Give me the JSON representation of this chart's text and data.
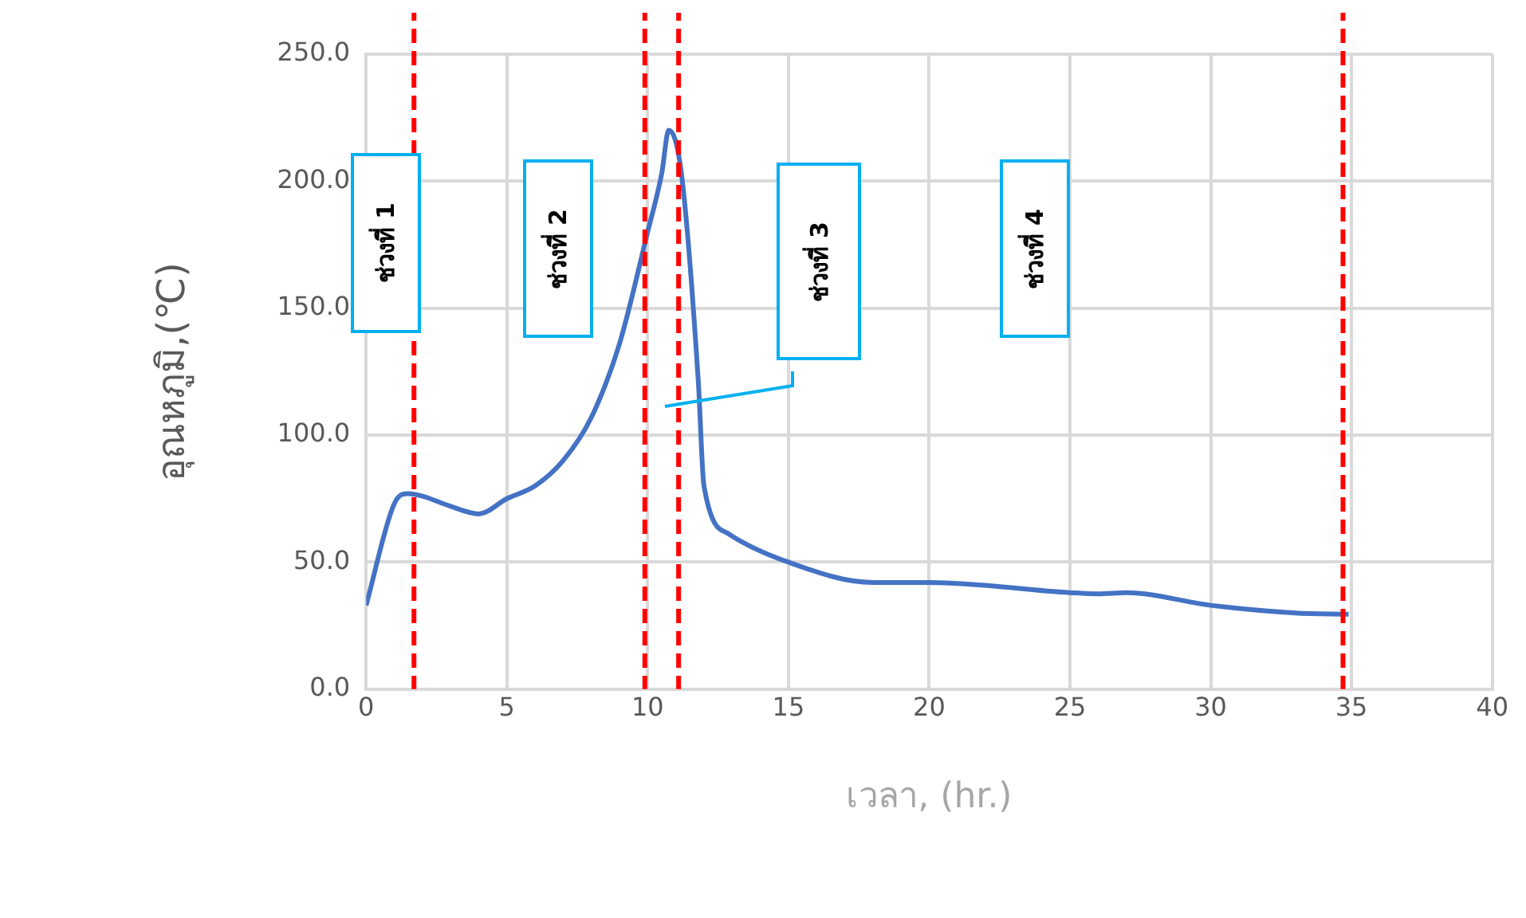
{
  "chart_data": {
    "type": "line",
    "xlabel": "เวลา, (hr.)",
    "ylabel": "อุณหภูมิ,(℃)",
    "series": [
      {
        "color": "#4472c4",
        "x": [
          0,
          1,
          1.5,
          2,
          3,
          4,
          5,
          6,
          7,
          8,
          9,
          10,
          10.5,
          10.75,
          11.2,
          11.8,
          12,
          12.9,
          15,
          18,
          20,
          25,
          26,
          27,
          30,
          33,
          34.9
        ],
        "values": [
          33,
          73,
          77,
          76,
          72,
          69,
          75,
          80,
          90,
          107,
          136,
          180,
          203,
          220,
          203,
          121,
          80,
          61,
          50,
          42,
          42,
          38,
          37.5,
          38,
          33,
          30,
          29.5
        ]
      }
    ],
    "xlim": [
      0,
      40
    ],
    "xticks": [
      0,
      5,
      10,
      15,
      20,
      25,
      30,
      35,
      40
    ],
    "ylim": [
      0,
      250
    ],
    "yticks": [
      {
        "value": 0,
        "label": "0.0"
      },
      {
        "value": 50,
        "label": "50.0"
      },
      {
        "value": 100,
        "label": "100.0"
      },
      {
        "value": 150,
        "label": "150.0"
      },
      {
        "value": 200,
        "label": "200.0"
      },
      {
        "value": 250,
        "label": "250.0"
      }
    ],
    "grid": true,
    "legend": false,
    "marker": "none",
    "line_style": "solid",
    "ref_lines": [
      {
        "axis": "x",
        "value": 1.7,
        "color": "#ff0000",
        "line_style": "dashed"
      },
      {
        "axis": "x",
        "value": 9.9,
        "color": "#ff0000",
        "line_style": "dashed"
      },
      {
        "axis": "x",
        "value": 11.1,
        "color": "#ff0000",
        "line_style": "dashed"
      },
      {
        "axis": "x",
        "value": 34.7,
        "color": "#ff0000",
        "line_style": "dashed"
      }
    ],
    "annotations": [
      "ช่วงที่ 1",
      "ช่วงที่ 2",
      "ช่วงที่ 3",
      "ช่วงที่ 4"
    ]
  }
}
